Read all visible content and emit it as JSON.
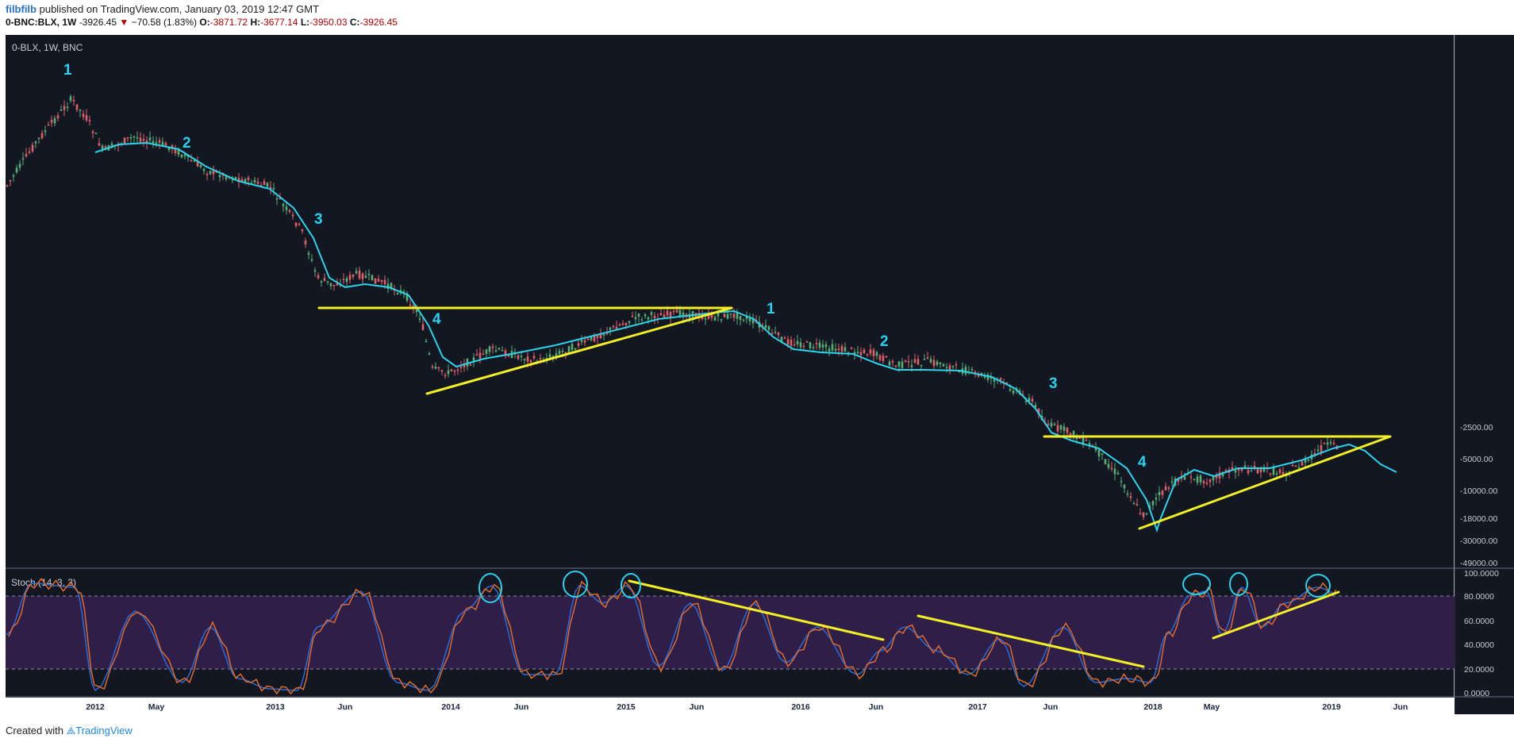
{
  "header": {
    "author": "filbfilb",
    "published": " published on TradingView.com, January 03, 2019 12:47 GMT",
    "symbol": "0-BNC:BLX, 1W",
    "last": "-3926.45",
    "change": "−70.58 (1.83%)",
    "open_label": "O:",
    "open": "-3871.72",
    "high_label": "H:",
    "high": "-3677.14",
    "low_label": "L:",
    "low": "-3950.03",
    "close_label": "C:",
    "close": "-3926.45"
  },
  "footer": {
    "created": "Created with",
    "brand": "TradingView"
  },
  "colors": {
    "background": "#131722",
    "up": "#5aae76",
    "down": "#e06069",
    "ma": "#2ad4ea",
    "trendline": "#f3ef27",
    "stoch_k": "#2a6bd8",
    "stoch_d": "#e06a2a",
    "stoch_band": "#2e1e48",
    "annotation": "#28d2ee"
  },
  "chart_data": [
    {
      "type": "candlestick",
      "title": "0-BLX, 1W, BNC",
      "y_scale": "log",
      "y_ticks": [
        "-2500.00",
        "-5000.00",
        "-10000.00",
        "-18000.00",
        "-30000.00",
        "-49000.00"
      ],
      "x_ticks": [
        "2012",
        "May",
        "2013",
        "Jun",
        "2014",
        "Jun",
        "2015",
        "Jun",
        "2016",
        "Jun",
        "2017",
        "Jun",
        "2018",
        "May",
        "2019",
        "Jun"
      ],
      "x_range": [
        "2011-05",
        "2019-08"
      ],
      "wave_labels": [
        "1",
        "2",
        "3",
        "4",
        "1",
        "2",
        "3",
        "4"
      ],
      "last_close": -3926.45,
      "overlays": [
        "moving average (cyan)",
        "trend lines (yellow)"
      ]
    },
    {
      "type": "line",
      "title": "Stoch (14, 3, 3)",
      "ylim": [
        0,
        100
      ],
      "y_ticks": [
        "100.0000",
        "80.0000",
        "60.0000",
        "40.0000",
        "20.0000",
        "0.0000"
      ],
      "bands": [
        20,
        80
      ],
      "series": [
        {
          "name": "%K",
          "color": "#2a6bd8"
        },
        {
          "name": "%D",
          "color": "#e06a2a"
        }
      ]
    }
  ]
}
